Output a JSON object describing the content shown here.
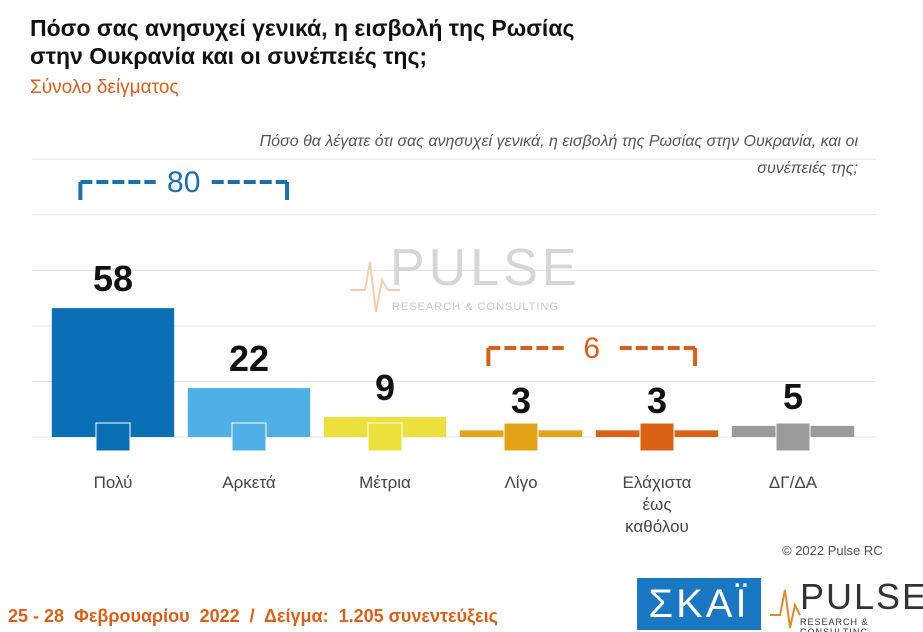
{
  "chart_data": {
    "type": "bar",
    "title": "Πόσο σας ανησυχεί γενικά, η εισβολή της Ρωσίας στην Ουκρανία και οι συνέπειές της;",
    "subtitle": "Σύνολο δείγματος",
    "question": "Πόσο θα λέγατε ότι σας ανησυχεί γενικά, η εισβολή της Ρωσίας στην Ουκρανία, και οι συνέπειές της;",
    "categories": [
      "Πολύ",
      "Αρκετά",
      "Μέτρια",
      "Λίγο",
      "Ελάχιστα έως καθόλου",
      "ΔΓ/ΔΑ"
    ],
    "values": [
      58,
      22,
      9,
      3,
      3,
      5
    ],
    "colors": [
      "#0b6fb5",
      "#4eb0e4",
      "#ece03c",
      "#e3a318",
      "#da6214",
      "#9b9b9b"
    ],
    "ylim": [
      0,
      126
    ],
    "yticks": [
      0,
      25,
      50,
      75,
      100,
      125
    ],
    "grid": true,
    "groups": [
      {
        "value": 80,
        "span": [
          "Πολύ",
          "Αρκετά"
        ],
        "color": "#1a6fae"
      },
      {
        "value": 6,
        "span": [
          "Λίγο",
          "Ελάχιστα έως καθόλου"
        ],
        "color": "#d8601a"
      }
    ]
  },
  "watermark": {
    "name": "PULSE",
    "tagline": "RESEARCH & CONSULTING"
  },
  "footer": {
    "fieldwork": "25 - 28  Φεβρουαρίου  2022  /  Δείγμα:  1.205 συνεντεύξεις",
    "copyright": "© 2022 Pulse RC",
    "logo_left": "ΣΚΑΪ",
    "logo_right": "PULSE",
    "logo_right_tagline": "RESEARCH & CONSULTING"
  }
}
